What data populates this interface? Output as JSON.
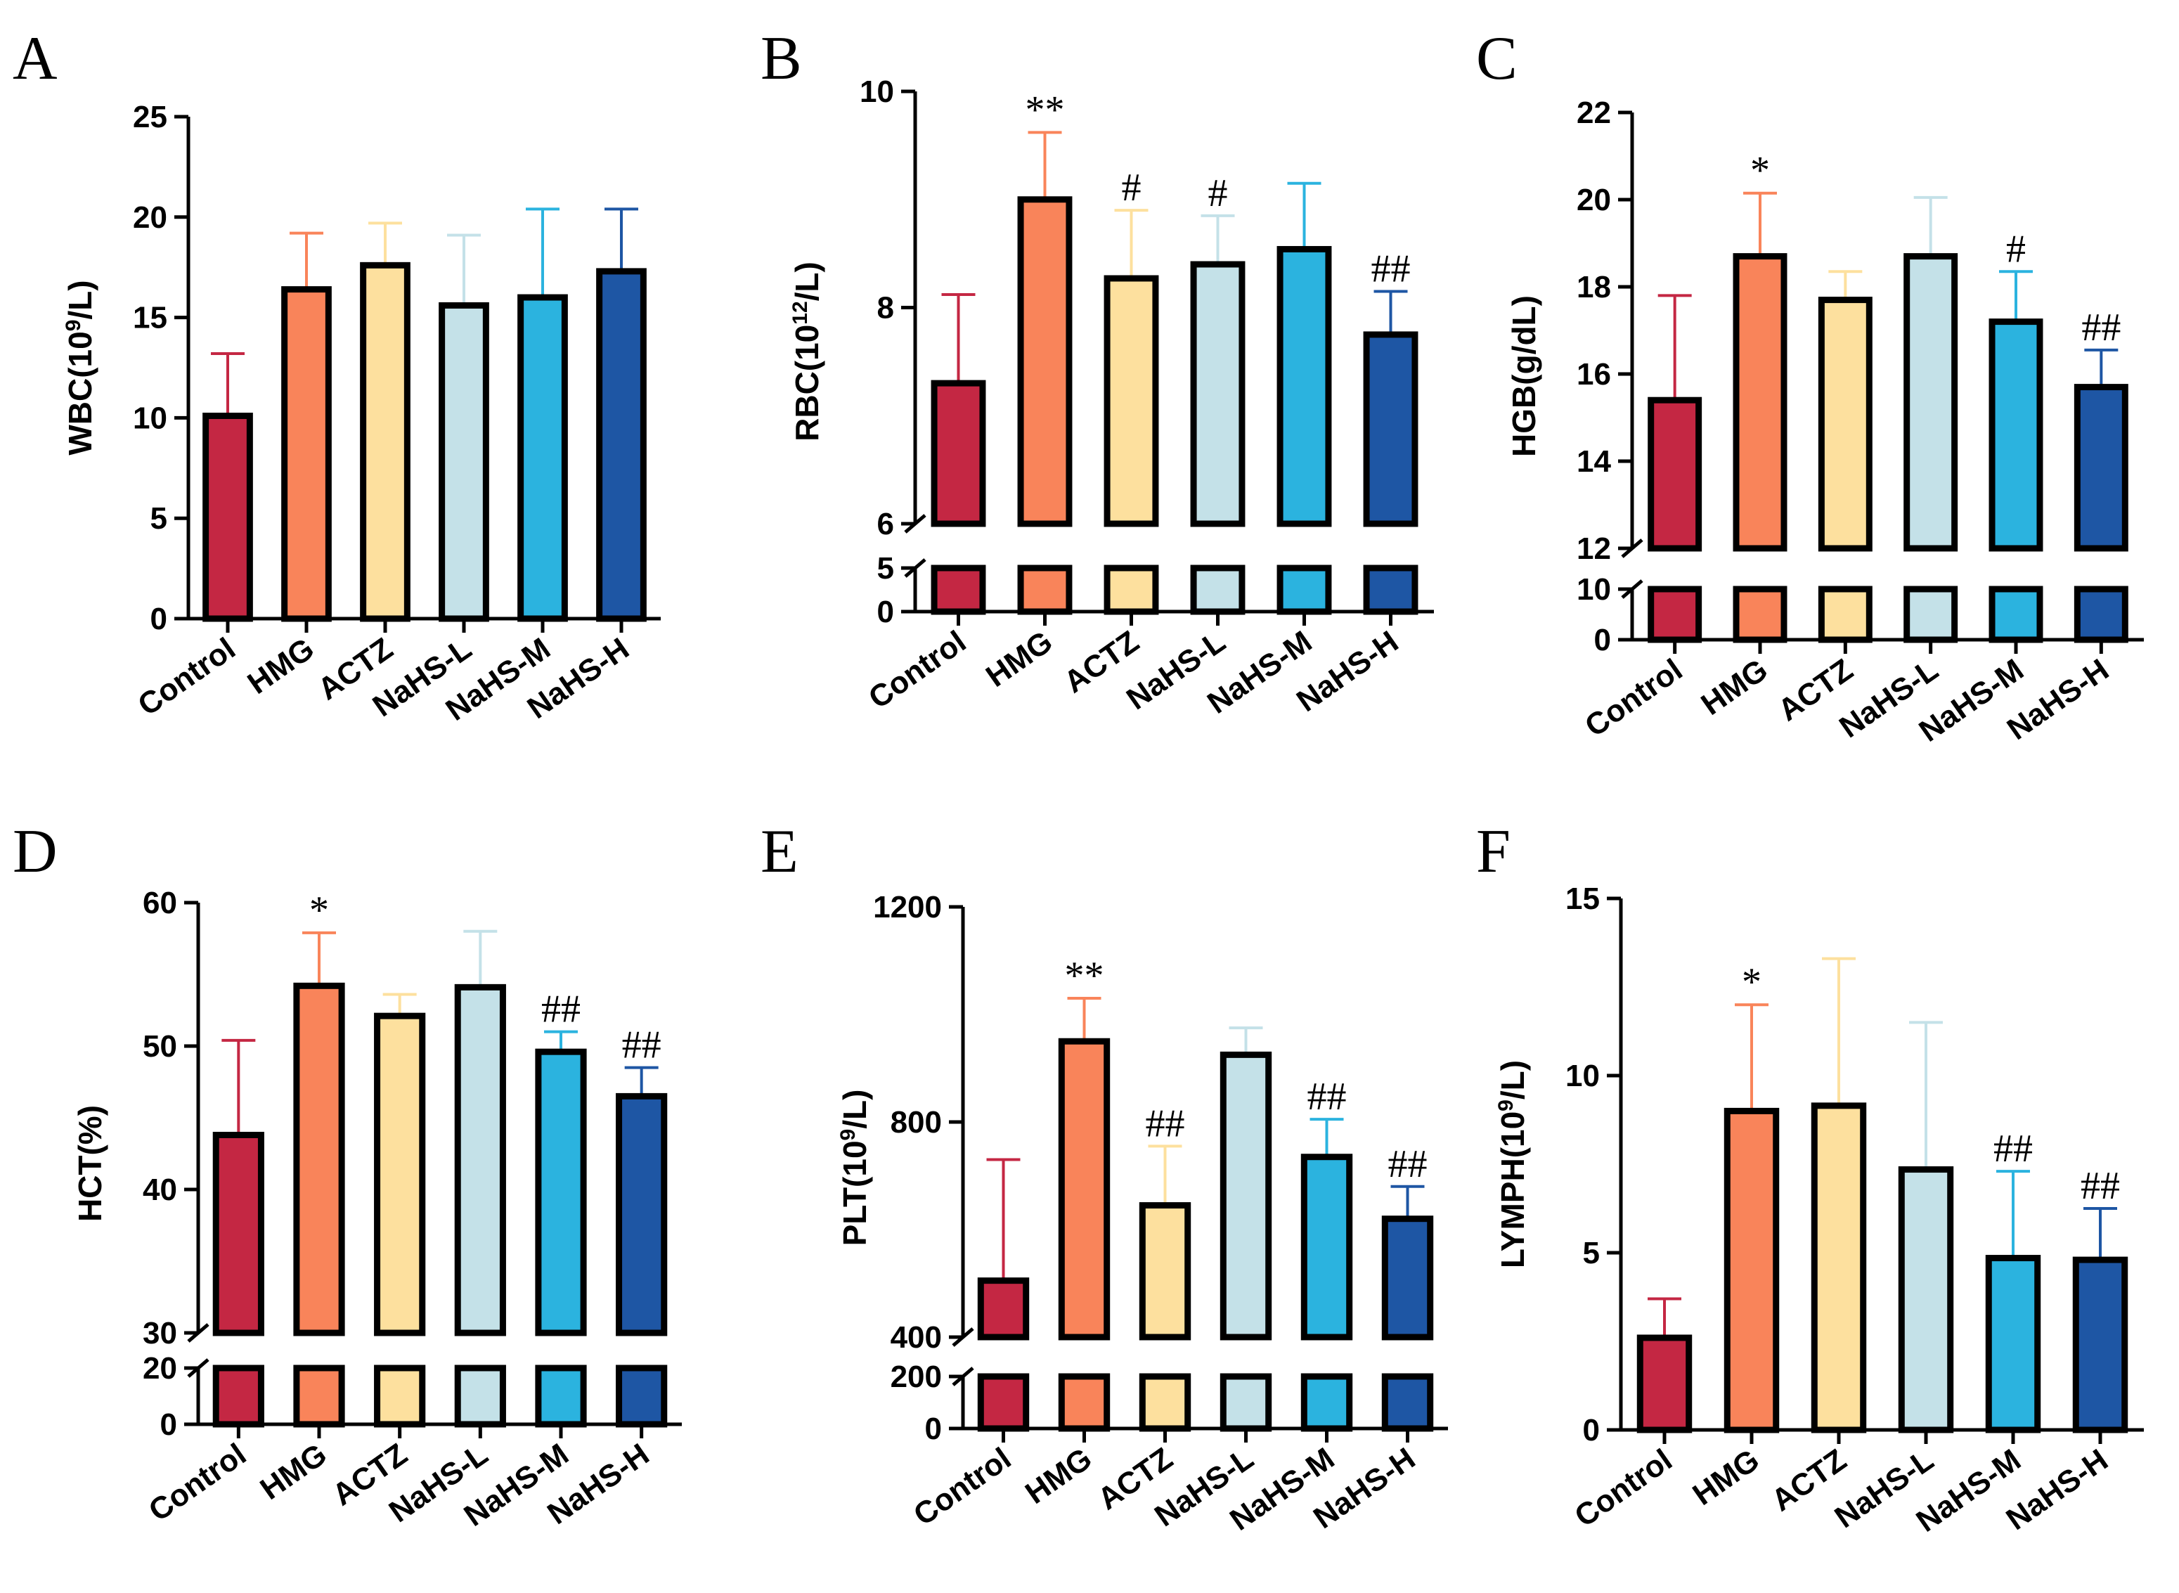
{
  "colors": [
    "#c42743",
    "#f9845a",
    "#fde09e",
    "#c4e1e8",
    "#2bb3df",
    "#1e56a4"
  ],
  "chart_data": [
    {
      "panel": "A",
      "type": "bar",
      "ylabel_parts": [
        "WBC(10",
        "9",
        "/L)"
      ],
      "categories": [
        "Control",
        "HMG",
        "ACTZ",
        "NaHS-L",
        "NaHS-M",
        "NaHS-H"
      ],
      "values": [
        10.1,
        16.4,
        17.6,
        15.6,
        16.0,
        17.3
      ],
      "errors": [
        3.1,
        2.8,
        2.1,
        3.5,
        4.4,
        3.1
      ],
      "sig": [
        "",
        "",
        "",
        "",
        "",
        ""
      ],
      "ylim": [
        0,
        25
      ],
      "ticks": [
        0,
        5,
        10,
        15,
        20,
        25
      ],
      "tick_labels": [
        "0",
        "5",
        "10",
        "15",
        "20",
        "25"
      ],
      "axis_break": null
    },
    {
      "panel": "B",
      "type": "bar",
      "ylabel_parts": [
        "RBC(10",
        "12",
        "/L)"
      ],
      "categories": [
        "Control",
        "HMG",
        "ACTZ",
        "NaHS-L",
        "NaHS-M",
        "NaHS-H"
      ],
      "values": [
        7.3,
        9.0,
        8.27,
        8.4,
        8.54,
        7.75
      ],
      "errors": [
        0.82,
        0.62,
        0.63,
        0.45,
        0.61,
        0.4
      ],
      "sig": [
        "",
        "**",
        "#",
        "#",
        "",
        "##"
      ],
      "ylim": [
        0,
        10
      ],
      "ticks": [
        0,
        5,
        6,
        8,
        10
      ],
      "tick_labels": [
        "0",
        "5",
        "6",
        "8",
        "10"
      ],
      "axis_break": {
        "lower": [
          0,
          5
        ],
        "upper": [
          6,
          10
        ]
      }
    },
    {
      "panel": "C",
      "type": "bar",
      "ylabel_parts": [
        "HGB(g/dL)"
      ],
      "categories": [
        "Control",
        "HMG",
        "ACTZ",
        "NaHS-L",
        "NaHS-M",
        "NaHS-H"
      ],
      "values": [
        15.4,
        18.7,
        17.7,
        18.7,
        17.2,
        15.7
      ],
      "errors": [
        2.4,
        1.45,
        0.65,
        1.35,
        1.15,
        0.85
      ],
      "sig": [
        "",
        "*",
        "",
        "",
        "#",
        "##"
      ],
      "ylim": [
        0,
        22
      ],
      "ticks": [
        0,
        10,
        12,
        14,
        16,
        18,
        20,
        22
      ],
      "tick_labels": [
        "0",
        "10",
        "12",
        "14",
        "16",
        "18",
        "20",
        "22"
      ],
      "axis_break": {
        "lower": [
          0,
          10
        ],
        "upper": [
          12,
          22
        ]
      }
    },
    {
      "panel": "D",
      "type": "bar",
      "ylabel_parts": [
        "HCT(%)"
      ],
      "categories": [
        "Control",
        "HMG",
        "ACTZ",
        "NaHS-L",
        "NaHS-M",
        "NaHS-H"
      ],
      "values": [
        43.8,
        54.2,
        52.1,
        54.1,
        49.6,
        46.5
      ],
      "errors": [
        6.6,
        3.7,
        1.5,
        3.9,
        1.4,
        2.0
      ],
      "sig": [
        "",
        "*",
        "",
        "",
        "##",
        "##"
      ],
      "ylim": [
        0,
        60
      ],
      "ticks": [
        0,
        20,
        30,
        40,
        50,
        60
      ],
      "tick_labels": [
        "0",
        "20",
        "30",
        "40",
        "50",
        "60"
      ],
      "axis_break": {
        "lower": [
          0,
          20
        ],
        "upper": [
          30,
          60
        ]
      }
    },
    {
      "panel": "E",
      "type": "bar",
      "ylabel_parts": [
        "PLT(10",
        "9",
        "/L)"
      ],
      "categories": [
        "Control",
        "HMG",
        "ACTZ",
        "NaHS-L",
        "NaHS-M",
        "NaHS-H"
      ],
      "values": [
        505,
        950,
        645,
        925,
        735,
        620
      ],
      "errors": [
        225,
        80,
        110,
        50,
        70,
        60
      ],
      "sig": [
        "",
        "**",
        "##",
        "",
        "##",
        "##"
      ],
      "ylim": [
        0,
        1200
      ],
      "ticks": [
        0,
        200,
        400,
        800,
        1200
      ],
      "tick_labels": [
        "0",
        "200",
        "400",
        "800",
        "1200"
      ],
      "axis_break": {
        "lower": [
          0,
          200
        ],
        "upper": [
          400,
          1200
        ]
      }
    },
    {
      "panel": "F",
      "type": "bar",
      "ylabel_parts": [
        "LYMPH(10",
        "9",
        "/L)"
      ],
      "categories": [
        "Control",
        "HMG",
        "ACTZ",
        "NaHS-L",
        "NaHS-M",
        "NaHS-H"
      ],
      "values": [
        2.6,
        9.0,
        9.15,
        7.35,
        4.85,
        4.8
      ],
      "errors": [
        1.1,
        3.0,
        4.15,
        4.15,
        2.45,
        1.45
      ],
      "sig": [
        "",
        "*",
        "",
        "",
        "##",
        "##"
      ],
      "ylim": [
        0,
        15
      ],
      "ticks": [
        0,
        5,
        10,
        15
      ],
      "tick_labels": [
        "0",
        "5",
        "10",
        "15"
      ],
      "axis_break": null
    }
  ]
}
